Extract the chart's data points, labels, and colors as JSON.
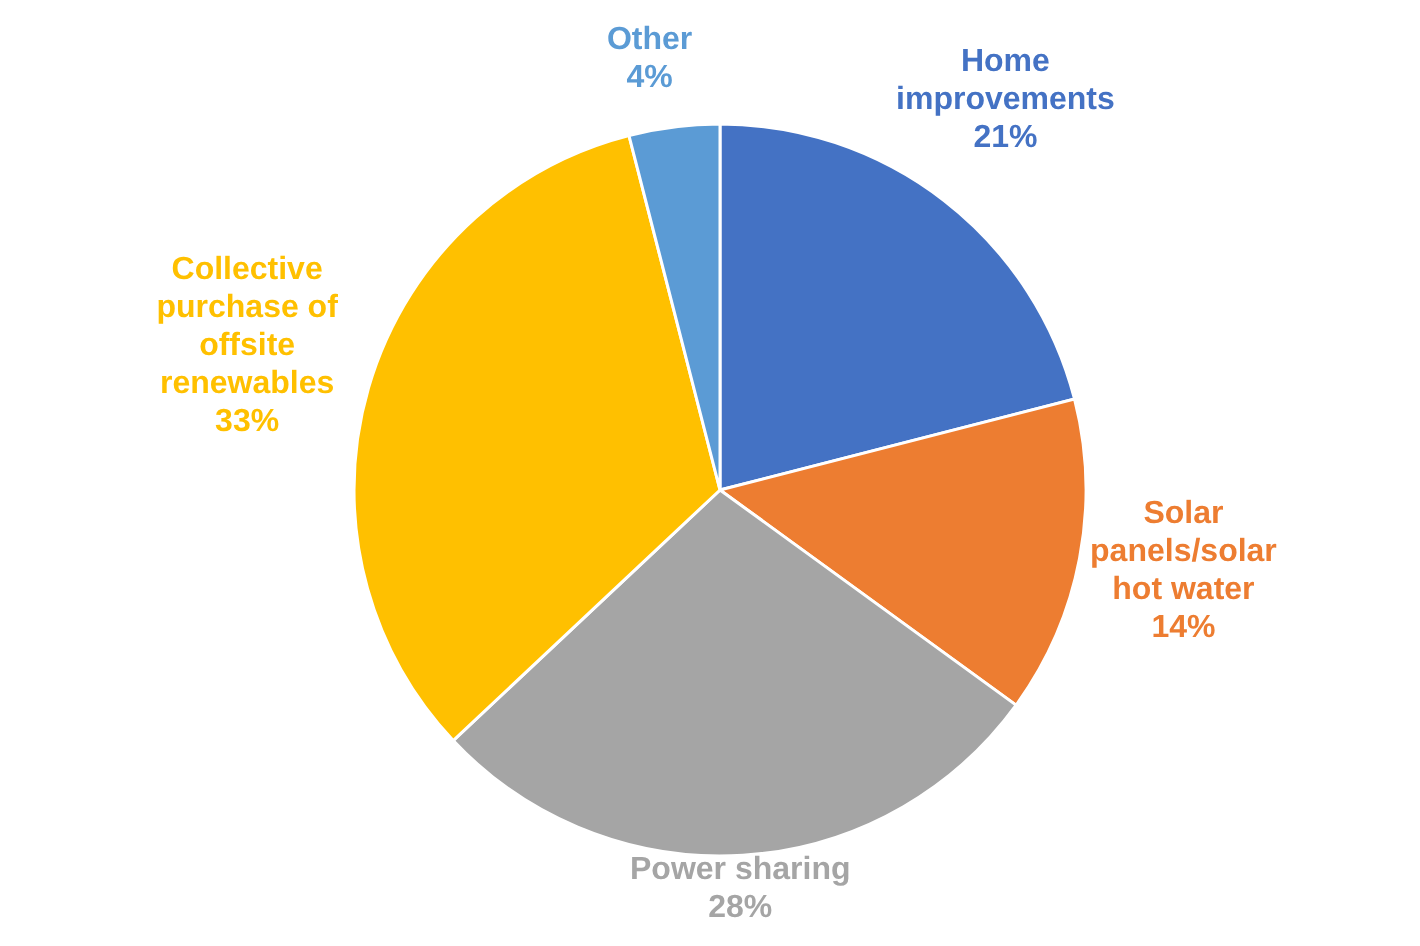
{
  "chart_data": {
    "type": "pie",
    "categories": [
      "Home improvements",
      "Solar panels/solar hot water",
      "Power sharing",
      "Collective purchase of offsite renewables",
      "Other"
    ],
    "values": [
      21,
      14,
      28,
      33,
      4
    ],
    "colors": [
      "#4472c4",
      "#ed7d31",
      "#a5a5a5",
      "#ffc000",
      "#5b9bd5"
    ],
    "value_labels": [
      "21%",
      "14%",
      "28%",
      "33%",
      "4%"
    ],
    "legend": false
  }
}
